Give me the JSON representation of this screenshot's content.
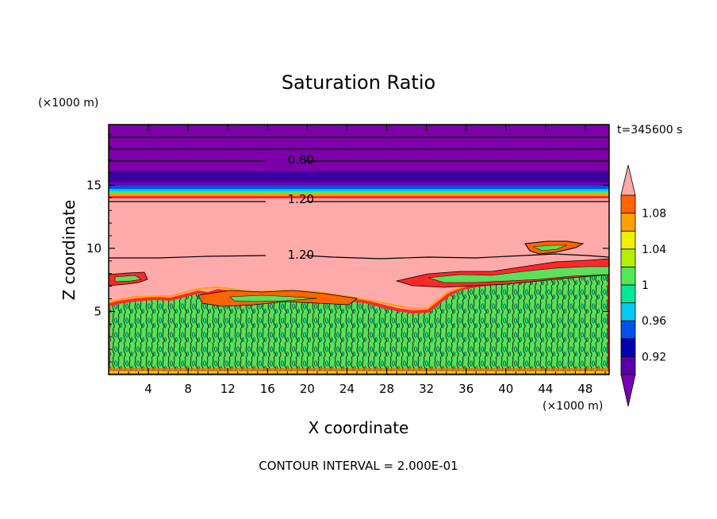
{
  "chart_data": {
    "type": "heatmap",
    "title": "Saturation Ratio",
    "xlabel": "X coordinate",
    "ylabel": "Z coordinate",
    "x_unit": "(×1000 m)",
    "y_unit": "(×1000 m)",
    "time_label": "t=345600 s",
    "footer": "CONTOUR INTERVAL = 2.000E-01",
    "xlim": [
      0,
      50.4
    ],
    "ylim": [
      0,
      19.8
    ],
    "x_ticks": [
      "4",
      "8",
      "12",
      "16",
      "20",
      "24",
      "28",
      "32",
      "36",
      "40",
      "44",
      "48"
    ],
    "x_tick_values": [
      4,
      8,
      12,
      16,
      20,
      24,
      28,
      32,
      36,
      40,
      44,
      48
    ],
    "y_ticks": [
      "5",
      "10",
      "15"
    ],
    "y_tick_values": [
      5,
      10,
      15
    ],
    "contour_labels": [
      {
        "text": "0.80",
        "x": 17.6,
        "z": 17.0
      },
      {
        "text": "1.20",
        "x": 17.6,
        "z": 13.9
      },
      {
        "text": "1.20",
        "x": 17.6,
        "z": 9.5
      }
    ],
    "colorbar": {
      "levels": [
        0.9,
        0.92,
        0.94,
        0.96,
        0.98,
        1.0,
        1.02,
        1.04,
        1.06,
        1.08,
        1.1
      ],
      "labels": [
        "0.92",
        "0.96",
        "1",
        "1.04",
        "1.08"
      ],
      "label_values": [
        0.92,
        0.96,
        1.0,
        1.04,
        1.08
      ],
      "colors": [
        "#5a00a8",
        "#0000b4",
        "#0050f0",
        "#00c8f0",
        "#00e896",
        "#55e655",
        "#b4f000",
        "#f0f000",
        "#ffa000",
        "#ff6400",
        "#ff2828",
        "#ffaaaa"
      ],
      "under_color": "#7800b4",
      "over_color": "#ffaaaa"
    },
    "colors": {
      "upper_purple": "#7b00a8",
      "dark_band": "#3c00a0",
      "pink_layer": "#ffaaaa",
      "green_field": "#5ae05a",
      "teal_patch": "#00e896",
      "red_edge": "#ff2828",
      "orange_edge": "#ffa000",
      "yellow_edge": "#f0f000"
    }
  }
}
